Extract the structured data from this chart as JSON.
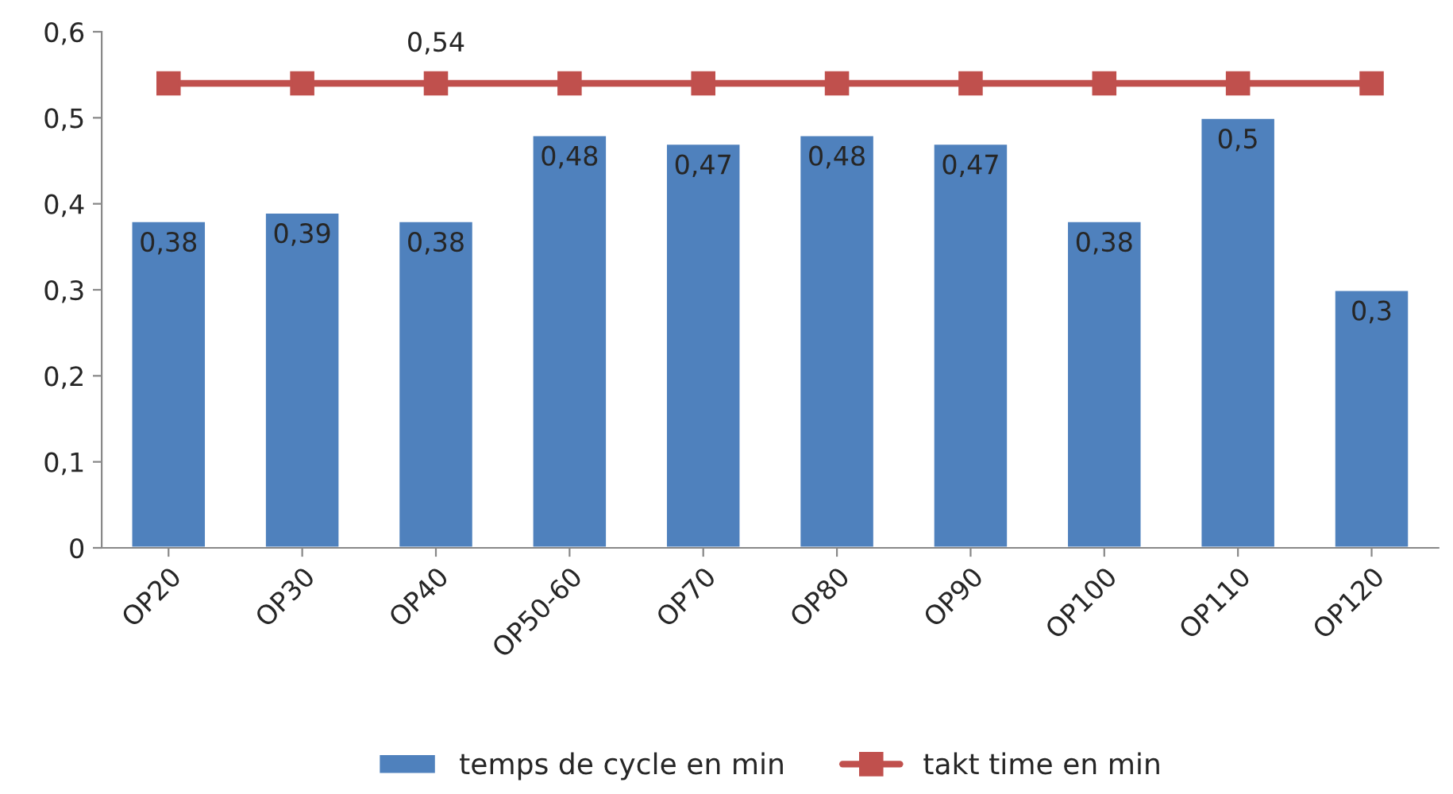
{
  "chart_data": {
    "type": "bar",
    "categories": [
      "OP20",
      "OP30",
      "OP40",
      "OP50-60",
      "OP70",
      "OP80",
      "OP90",
      "OP100",
      "OP110",
      "OP120"
    ],
    "series": [
      {
        "name": "temps de cycle en min",
        "color": "#4f81bd",
        "values": [
          0.38,
          0.39,
          0.38,
          0.48,
          0.47,
          0.48,
          0.47,
          0.38,
          0.5,
          0.3
        ],
        "value_labels": [
          "0,38",
          "0,39",
          "0,38",
          "0,48",
          "0,47",
          "0,48",
          "0,47",
          "0,38",
          "0,5",
          "0,3"
        ]
      },
      {
        "name": "takt time en min",
        "type": "line",
        "color": "#c0504d",
        "marker": "square",
        "values": [
          0.54,
          0.54,
          0.54,
          0.54,
          0.54,
          0.54,
          0.54,
          0.54,
          0.54,
          0.54
        ],
        "value_labels": [
          null,
          null,
          "0,54",
          null,
          null,
          null,
          null,
          null,
          null,
          null
        ]
      }
    ],
    "ylim": [
      0,
      0.6
    ],
    "yticks": [
      {
        "value": 0,
        "label": "0"
      },
      {
        "value": 0.1,
        "label": "0,1"
      },
      {
        "value": 0.2,
        "label": "0,2"
      },
      {
        "value": 0.3,
        "label": "0,3"
      },
      {
        "value": 0.4,
        "label": "0,4"
      },
      {
        "value": 0.5,
        "label": "0,5"
      },
      {
        "value": 0.6,
        "label": "0,6"
      }
    ],
    "grid": false,
    "legend": "bottom"
  }
}
